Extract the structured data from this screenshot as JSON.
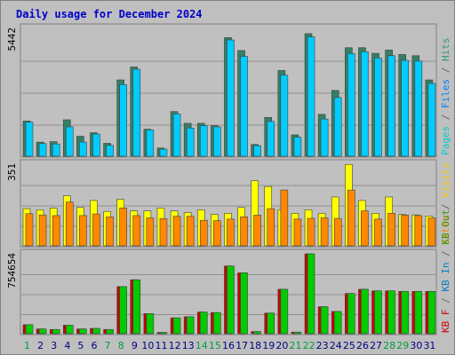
{
  "chart_data": {
    "type": "bar",
    "title": "Daily usage for December 2024",
    "categories": [
      "1",
      "2",
      "3",
      "4",
      "5",
      "6",
      "7",
      "8",
      "9",
      "10",
      "11",
      "12",
      "13",
      "14",
      "15",
      "16",
      "17",
      "18",
      "19",
      "20",
      "21",
      "22",
      "23",
      "24",
      "25",
      "26",
      "27",
      "28",
      "29",
      "30",
      "31"
    ],
    "weekend_categories": [
      "1",
      "7",
      "8",
      "14",
      "15",
      "21",
      "22",
      "28",
      "29"
    ],
    "grid": true,
    "panels": [
      {
        "name": "hits-files-pages",
        "ymax_label": "5442",
        "ylim": [
          0,
          5442
        ],
        "legend": [
          {
            "text": "Pages",
            "color": "#00cccc"
          },
          {
            "text": " / ",
            "color": "#666666"
          },
          {
            "text": "Files",
            "color": "#0080ff"
          },
          {
            "text": " / ",
            "color": "#666666"
          },
          {
            "text": "Hits",
            "color": "#339966"
          }
        ],
        "series": [
          {
            "name": "Hits",
            "color": "#338066",
            "values": [
              1500,
              600,
              620,
              1550,
              850,
              1000,
              550,
              3250,
              3800,
              1150,
              350,
              1900,
              1400,
              1400,
              1300,
              5050,
              4500,
              500,
              1650,
              3650,
              910,
              5220,
              1780,
              2800,
              4620,
              4620,
              4380,
              4520,
              4330,
              4280,
              3250
            ]
          },
          {
            "name": "Files",
            "color": "#00ccff",
            "values": [
              1450,
              540,
              520,
              1250,
              600,
              940,
              460,
              3050,
              3700,
              1120,
              300,
              1800,
              1200,
              1300,
              1250,
              4950,
              4250,
              450,
              1480,
              3450,
              810,
              5080,
              1580,
              2500,
              4370,
              4450,
              4180,
              4280,
              4080,
              4050,
              3100
            ]
          }
        ]
      },
      {
        "name": "visits-sites",
        "ymax_label": "351",
        "ylim": [
          0,
          351
        ],
        "legend": [
          {
            "text": "Sites",
            "color": "#ff8000"
          },
          {
            "text": " / ",
            "color": "#666666"
          },
          {
            "text": "Visits",
            "color": "#ffcc00"
          }
        ],
        "series": [
          {
            "name": "Visits",
            "color": "#ffff00",
            "values": [
              160,
              155,
              162,
              215,
              165,
              195,
              148,
              200,
              150,
              150,
              163,
              150,
              143,
              155,
              135,
              140,
              165,
              280,
              255,
              155,
              140,
              155,
              140,
              210,
              350,
              195,
              140,
              210,
              135,
              133,
              128
            ]
          },
          {
            "name": "Sites",
            "color": "#ff8800",
            "values": [
              138,
              133,
              130,
              188,
              130,
              137,
              124,
              163,
              130,
              120,
              117,
              127,
              127,
              110,
              108,
              115,
              125,
              132,
              160,
              240,
              115,
              118,
              120,
              118,
              240,
              150,
              115,
              140,
              132,
              130,
              120
            ]
          }
        ]
      },
      {
        "name": "kbytes",
        "ymax_label": "754654",
        "ylim": [
          0,
          754654
        ],
        "legend": [
          {
            "text": "KB F",
            "color": "#cc0000"
          },
          {
            "text": " / ",
            "color": "#666666"
          },
          {
            "text": "KB In",
            "color": "#0080c0"
          },
          {
            "text": " / ",
            "color": "#666666"
          },
          {
            "text": "KB Out",
            "color": "#339900"
          }
        ],
        "series": [
          {
            "name": "KB F",
            "color": "#cc0000",
            "values": [
              85000,
              45000,
              40000,
              80000,
              45000,
              50000,
              40000,
              445000,
              510000,
              190000,
              12000,
              150000,
              160000,
              205000,
              200000,
              640000,
              575000,
              20000,
              195000,
              420000,
              15000,
              754654,
              255000,
              210000,
              380000,
              420000,
              405000,
              405000,
              400000,
              400000,
              400000
            ]
          },
          {
            "name": "KB Out",
            "color": "#00cc00",
            "values": [
              85000,
              45000,
              40000,
              80000,
              45000,
              50000,
              40000,
              445000,
              510000,
              190000,
              12000,
              150000,
              160000,
              205000,
              200000,
              640000,
              575000,
              20000,
              195000,
              420000,
              15000,
              754654,
              255000,
              210000,
              380000,
              420000,
              405000,
              405000,
              400000,
              400000,
              400000
            ]
          }
        ]
      }
    ]
  },
  "colors": {
    "frame_outer": "#bfbfbf",
    "plot_bg": "#c0c0c0",
    "grid": "#909090",
    "weekday_label": "#000080",
    "weekend_label": "#00a040"
  }
}
